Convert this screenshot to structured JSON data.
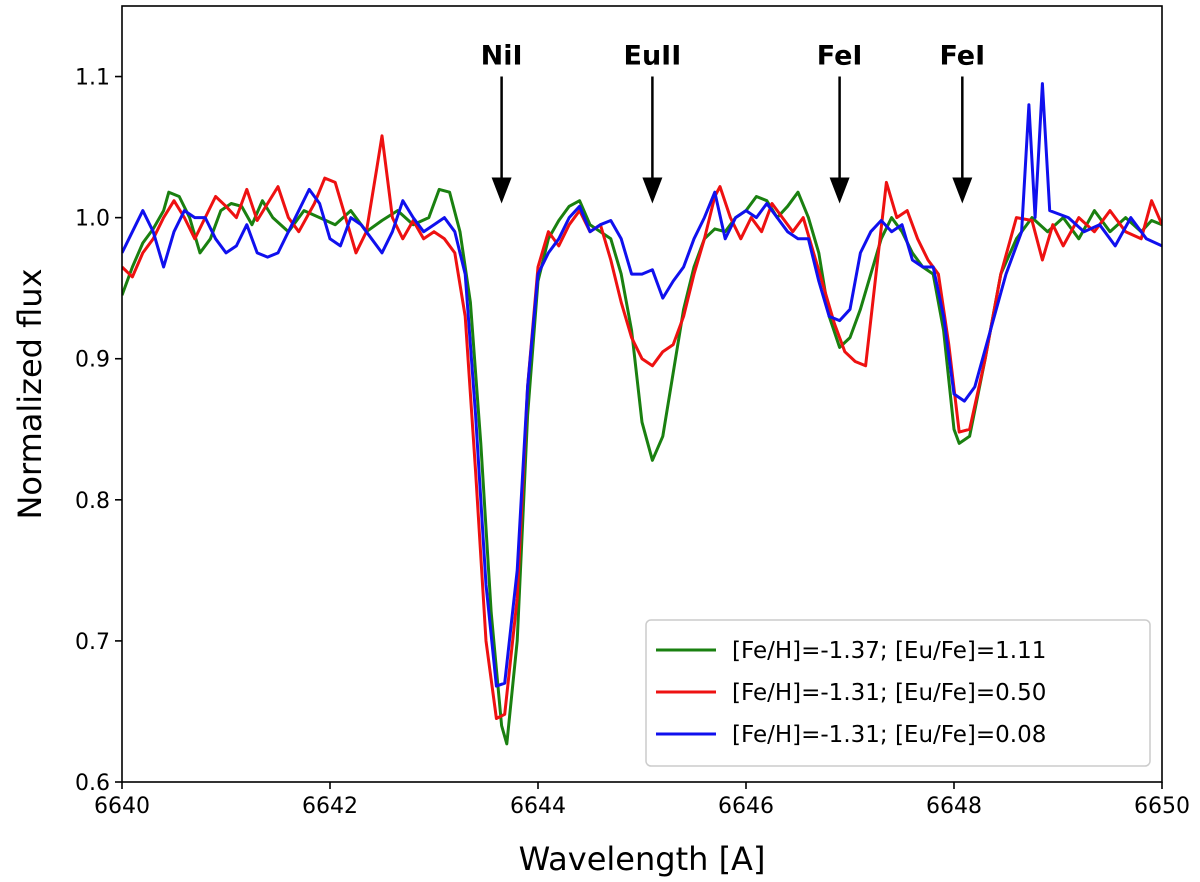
{
  "chart_data": {
    "type": "line",
    "xlabel": "Wavelength [A]",
    "ylabel": "Normalized flux",
    "xlim": [
      6640,
      6650
    ],
    "ylim": [
      0.6,
      1.15
    ],
    "xticks": [
      6640,
      6642,
      6644,
      6646,
      6648,
      6650
    ],
    "yticks": [
      0.6,
      0.7,
      0.8,
      0.9,
      1.0,
      1.1
    ],
    "xtick_labels": [
      "6640",
      "6642",
      "6644",
      "6646",
      "6648",
      "6650"
    ],
    "ytick_labels": [
      "0.6",
      "0.7",
      "0.8",
      "0.9",
      "1.0",
      "1.1"
    ],
    "grid": false,
    "legend_position": "bottom-right",
    "annotations": [
      {
        "label": "NiI",
        "x": 6643.65,
        "y_tail": 1.1,
        "y_head": 1.01
      },
      {
        "label": "EuII",
        "x": 6645.1,
        "y_tail": 1.1,
        "y_head": 1.01
      },
      {
        "label": "FeI",
        "x": 6646.9,
        "y_tail": 1.1,
        "y_head": 1.01
      },
      {
        "label": "FeI",
        "x": 6648.08,
        "y_tail": 1.1,
        "y_head": 1.01
      }
    ],
    "series": [
      {
        "name": "[Fe/H]=-1.37; [Eu/Fe]=1.11",
        "color": "#1a8010",
        "points": [
          [
            6640.0,
            0.945
          ],
          [
            6640.1,
            0.965
          ],
          [
            6640.2,
            0.982
          ],
          [
            6640.3,
            0.992
          ],
          [
            6640.4,
            1.005
          ],
          [
            6640.45,
            1.018
          ],
          [
            6640.55,
            1.015
          ],
          [
            6640.65,
            1.0
          ],
          [
            6640.75,
            0.975
          ],
          [
            6640.85,
            0.985
          ],
          [
            6640.95,
            1.005
          ],
          [
            6641.05,
            1.01
          ],
          [
            6641.15,
            1.008
          ],
          [
            6641.25,
            0.995
          ],
          [
            6641.35,
            1.012
          ],
          [
            6641.45,
            1.0
          ],
          [
            6641.6,
            0.99
          ],
          [
            6641.75,
            1.005
          ],
          [
            6641.9,
            1.0
          ],
          [
            6642.05,
            0.995
          ],
          [
            6642.2,
            1.005
          ],
          [
            6642.35,
            0.99
          ],
          [
            6642.5,
            0.998
          ],
          [
            6642.65,
            1.005
          ],
          [
            6642.8,
            0.995
          ],
          [
            6642.95,
            1.0
          ],
          [
            6643.05,
            1.02
          ],
          [
            6643.15,
            1.018
          ],
          [
            6643.25,
            0.99
          ],
          [
            6643.35,
            0.94
          ],
          [
            6643.45,
            0.84
          ],
          [
            6643.55,
            0.72
          ],
          [
            6643.65,
            0.64
          ],
          [
            6643.7,
            0.627
          ],
          [
            6643.8,
            0.7
          ],
          [
            6643.9,
            0.86
          ],
          [
            6644.0,
            0.955
          ],
          [
            6644.1,
            0.985
          ],
          [
            6644.2,
            0.998
          ],
          [
            6644.3,
            1.008
          ],
          [
            6644.4,
            1.012
          ],
          [
            6644.5,
            0.995
          ],
          [
            6644.6,
            0.99
          ],
          [
            6644.7,
            0.985
          ],
          [
            6644.8,
            0.96
          ],
          [
            6644.9,
            0.92
          ],
          [
            6645.0,
            0.855
          ],
          [
            6645.1,
            0.828
          ],
          [
            6645.2,
            0.845
          ],
          [
            6645.3,
            0.89
          ],
          [
            6645.4,
            0.935
          ],
          [
            6645.5,
            0.965
          ],
          [
            6645.6,
            0.985
          ],
          [
            6645.7,
            0.992
          ],
          [
            6645.8,
            0.99
          ],
          [
            6645.9,
            1.0
          ],
          [
            6646.0,
            1.005
          ],
          [
            6646.1,
            1.015
          ],
          [
            6646.2,
            1.012
          ],
          [
            6646.3,
            1.0
          ],
          [
            6646.4,
            1.008
          ],
          [
            6646.5,
            1.018
          ],
          [
            6646.6,
            1.0
          ],
          [
            6646.7,
            0.975
          ],
          [
            6646.8,
            0.93
          ],
          [
            6646.9,
            0.908
          ],
          [
            6647.0,
            0.915
          ],
          [
            6647.1,
            0.935
          ],
          [
            6647.2,
            0.96
          ],
          [
            6647.3,
            0.985
          ],
          [
            6647.4,
            1.0
          ],
          [
            6647.5,
            0.99
          ],
          [
            6647.6,
            0.975
          ],
          [
            6647.7,
            0.965
          ],
          [
            6647.8,
            0.96
          ],
          [
            6647.9,
            0.92
          ],
          [
            6648.0,
            0.85
          ],
          [
            6648.05,
            0.84
          ],
          [
            6648.15,
            0.845
          ],
          [
            6648.3,
            0.9
          ],
          [
            6648.45,
            0.96
          ],
          [
            6648.6,
            0.985
          ],
          [
            6648.75,
            1.0
          ],
          [
            6648.9,
            0.99
          ],
          [
            6649.05,
            1.0
          ],
          [
            6649.2,
            0.985
          ],
          [
            6649.35,
            1.005
          ],
          [
            6649.5,
            0.99
          ],
          [
            6649.65,
            1.0
          ],
          [
            6649.8,
            0.99
          ],
          [
            6649.9,
            0.998
          ],
          [
            6650.0,
            0.995
          ]
        ]
      },
      {
        "name": "[Fe/H]=-1.31; [Eu/Fe]=0.50",
        "color": "#ee1111",
        "points": [
          [
            6640.0,
            0.965
          ],
          [
            6640.1,
            0.958
          ],
          [
            6640.2,
            0.975
          ],
          [
            6640.3,
            0.985
          ],
          [
            6640.4,
            1.0
          ],
          [
            6640.5,
            1.012
          ],
          [
            6640.6,
            1.0
          ],
          [
            6640.7,
            0.985
          ],
          [
            6640.8,
            1.0
          ],
          [
            6640.9,
            1.015
          ],
          [
            6641.0,
            1.008
          ],
          [
            6641.1,
            1.0
          ],
          [
            6641.2,
            1.02
          ],
          [
            6641.3,
            0.998
          ],
          [
            6641.4,
            1.01
          ],
          [
            6641.5,
            1.022
          ],
          [
            6641.6,
            1.0
          ],
          [
            6641.7,
            0.99
          ],
          [
            6641.85,
            1.01
          ],
          [
            6641.95,
            1.028
          ],
          [
            6642.05,
            1.025
          ],
          [
            6642.15,
            1.0
          ],
          [
            6642.25,
            0.975
          ],
          [
            6642.35,
            0.99
          ],
          [
            6642.45,
            1.035
          ],
          [
            6642.5,
            1.058
          ],
          [
            6642.6,
            1.0
          ],
          [
            6642.7,
            0.985
          ],
          [
            6642.8,
            0.998
          ],
          [
            6642.9,
            0.985
          ],
          [
            6643.0,
            0.99
          ],
          [
            6643.1,
            0.985
          ],
          [
            6643.2,
            0.975
          ],
          [
            6643.3,
            0.93
          ],
          [
            6643.4,
            0.82
          ],
          [
            6643.5,
            0.7
          ],
          [
            6643.6,
            0.645
          ],
          [
            6643.68,
            0.648
          ],
          [
            6643.8,
            0.73
          ],
          [
            6643.9,
            0.88
          ],
          [
            6644.0,
            0.965
          ],
          [
            6644.1,
            0.99
          ],
          [
            6644.2,
            0.98
          ],
          [
            6644.3,
            0.995
          ],
          [
            6644.4,
            1.005
          ],
          [
            6644.5,
            0.99
          ],
          [
            6644.6,
            0.995
          ],
          [
            6644.7,
            0.97
          ],
          [
            6644.8,
            0.94
          ],
          [
            6644.9,
            0.915
          ],
          [
            6645.0,
            0.9
          ],
          [
            6645.1,
            0.895
          ],
          [
            6645.2,
            0.905
          ],
          [
            6645.3,
            0.91
          ],
          [
            6645.4,
            0.93
          ],
          [
            6645.5,
            0.96
          ],
          [
            6645.6,
            0.985
          ],
          [
            6645.7,
            1.015
          ],
          [
            6645.75,
            1.022
          ],
          [
            6645.85,
            1.0
          ],
          [
            6645.95,
            0.985
          ],
          [
            6646.05,
            1.0
          ],
          [
            6646.15,
            0.99
          ],
          [
            6646.25,
            1.01
          ],
          [
            6646.35,
            1.0
          ],
          [
            6646.45,
            0.99
          ],
          [
            6646.55,
            1.0
          ],
          [
            6646.65,
            0.975
          ],
          [
            6646.75,
            0.95
          ],
          [
            6646.85,
            0.925
          ],
          [
            6646.95,
            0.905
          ],
          [
            6647.05,
            0.898
          ],
          [
            6647.15,
            0.895
          ],
          [
            6647.25,
            0.96
          ],
          [
            6647.35,
            1.025
          ],
          [
            6647.45,
            1.0
          ],
          [
            6647.55,
            1.005
          ],
          [
            6647.65,
            0.985
          ],
          [
            6647.75,
            0.97
          ],
          [
            6647.85,
            0.96
          ],
          [
            6647.95,
            0.91
          ],
          [
            6648.05,
            0.848
          ],
          [
            6648.15,
            0.85
          ],
          [
            6648.3,
            0.9
          ],
          [
            6648.45,
            0.96
          ],
          [
            6648.6,
            1.0
          ],
          [
            6648.75,
            0.998
          ],
          [
            6648.85,
            0.97
          ],
          [
            6648.95,
            0.995
          ],
          [
            6649.05,
            0.98
          ],
          [
            6649.2,
            1.0
          ],
          [
            6649.35,
            0.99
          ],
          [
            6649.5,
            1.005
          ],
          [
            6649.65,
            0.99
          ],
          [
            6649.8,
            0.985
          ],
          [
            6649.9,
            1.012
          ],
          [
            6650.0,
            0.995
          ]
        ]
      },
      {
        "name": "[Fe/H]=-1.31; [Eu/Fe]=0.08",
        "color": "#1010ee",
        "points": [
          [
            6640.0,
            0.975
          ],
          [
            6640.1,
            0.99
          ],
          [
            6640.2,
            1.005
          ],
          [
            6640.3,
            0.99
          ],
          [
            6640.4,
            0.965
          ],
          [
            6640.5,
            0.99
          ],
          [
            6640.6,
            1.005
          ],
          [
            6640.7,
            1.0
          ],
          [
            6640.8,
            1.0
          ],
          [
            6640.9,
            0.985
          ],
          [
            6641.0,
            0.975
          ],
          [
            6641.1,
            0.98
          ],
          [
            6641.2,
            0.995
          ],
          [
            6641.3,
            0.975
          ],
          [
            6641.4,
            0.972
          ],
          [
            6641.5,
            0.975
          ],
          [
            6641.6,
            0.99
          ],
          [
            6641.7,
            1.005
          ],
          [
            6641.8,
            1.02
          ],
          [
            6641.9,
            1.01
          ],
          [
            6642.0,
            0.985
          ],
          [
            6642.1,
            0.98
          ],
          [
            6642.2,
            1.0
          ],
          [
            6642.3,
            0.995
          ],
          [
            6642.4,
            0.985
          ],
          [
            6642.5,
            0.975
          ],
          [
            6642.6,
            0.99
          ],
          [
            6642.7,
            1.012
          ],
          [
            6642.8,
            1.0
          ],
          [
            6642.9,
            0.99
          ],
          [
            6643.0,
            0.995
          ],
          [
            6643.1,
            1.0
          ],
          [
            6643.2,
            0.99
          ],
          [
            6643.3,
            0.96
          ],
          [
            6643.4,
            0.86
          ],
          [
            6643.5,
            0.74
          ],
          [
            6643.6,
            0.668
          ],
          [
            6643.68,
            0.67
          ],
          [
            6643.8,
            0.75
          ],
          [
            6643.9,
            0.88
          ],
          [
            6644.0,
            0.96
          ],
          [
            6644.1,
            0.975
          ],
          [
            6644.2,
            0.985
          ],
          [
            6644.3,
            1.0
          ],
          [
            6644.4,
            1.008
          ],
          [
            6644.5,
            0.99
          ],
          [
            6644.6,
            0.995
          ],
          [
            6644.7,
            0.998
          ],
          [
            6644.8,
            0.985
          ],
          [
            6644.9,
            0.96
          ],
          [
            6645.0,
            0.96
          ],
          [
            6645.1,
            0.963
          ],
          [
            6645.2,
            0.943
          ],
          [
            6645.3,
            0.955
          ],
          [
            6645.4,
            0.965
          ],
          [
            6645.5,
            0.985
          ],
          [
            6645.6,
            1.0
          ],
          [
            6645.7,
            1.018
          ],
          [
            6645.8,
            0.985
          ],
          [
            6645.9,
            1.0
          ],
          [
            6646.0,
            1.005
          ],
          [
            6646.1,
            1.0
          ],
          [
            6646.2,
            1.01
          ],
          [
            6646.3,
            1.0
          ],
          [
            6646.4,
            0.99
          ],
          [
            6646.5,
            0.985
          ],
          [
            6646.6,
            0.985
          ],
          [
            6646.7,
            0.955
          ],
          [
            6646.8,
            0.93
          ],
          [
            6646.9,
            0.927
          ],
          [
            6647.0,
            0.935
          ],
          [
            6647.1,
            0.975
          ],
          [
            6647.2,
            0.99
          ],
          [
            6647.3,
            0.998
          ],
          [
            6647.4,
            0.99
          ],
          [
            6647.5,
            0.995
          ],
          [
            6647.6,
            0.97
          ],
          [
            6647.7,
            0.965
          ],
          [
            6647.8,
            0.965
          ],
          [
            6647.9,
            0.93
          ],
          [
            6648.0,
            0.875
          ],
          [
            6648.1,
            0.87
          ],
          [
            6648.2,
            0.88
          ],
          [
            6648.35,
            0.92
          ],
          [
            6648.5,
            0.96
          ],
          [
            6648.65,
            0.99
          ],
          [
            6648.72,
            1.08
          ],
          [
            6648.78,
            1.0
          ],
          [
            6648.85,
            1.095
          ],
          [
            6648.92,
            1.005
          ],
          [
            6649.1,
            1.0
          ],
          [
            6649.25,
            0.99
          ],
          [
            6649.4,
            0.995
          ],
          [
            6649.55,
            0.98
          ],
          [
            6649.7,
            1.0
          ],
          [
            6649.85,
            0.985
          ],
          [
            6650.0,
            0.98
          ]
        ]
      }
    ]
  }
}
